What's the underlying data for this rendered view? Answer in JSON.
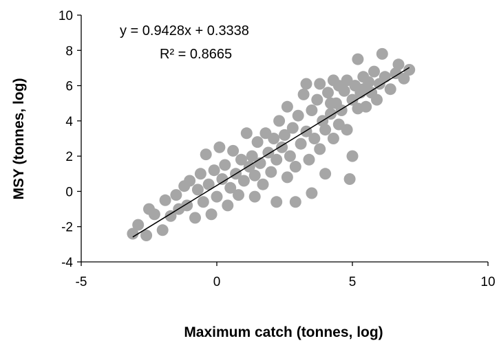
{
  "chart_data": {
    "type": "scatter",
    "title": "",
    "xlabel": "Maximum catch (tonnes, log)",
    "ylabel": "MSY (tonnes, log)",
    "xlim": [
      -5,
      10
    ],
    "ylim": [
      -4,
      10
    ],
    "xticks": [
      -5,
      0,
      5,
      10
    ],
    "yticks": [
      -4,
      -2,
      0,
      2,
      4,
      6,
      8,
      10
    ],
    "grid": false,
    "legend": "none",
    "colors": {
      "points": "#a6a6a6",
      "trendline": "#000000",
      "axes": "#000000"
    },
    "trendline": {
      "slope": 0.9428,
      "intercept": 0.3338,
      "x_range": [
        -3.1,
        7.1
      ],
      "equation_text": "y = 0.9428x  + 0.3338",
      "r2_text": "R² = 0.8665"
    },
    "points": [
      [
        -3.1,
        -2.4
      ],
      [
        -2.9,
        -1.9
      ],
      [
        -2.6,
        -2.5
      ],
      [
        -2.5,
        -1.0
      ],
      [
        -2.3,
        -1.3
      ],
      [
        -2.0,
        -2.2
      ],
      [
        -1.9,
        -0.5
      ],
      [
        -1.7,
        -1.4
      ],
      [
        -1.5,
        -0.2
      ],
      [
        -1.4,
        -1.0
      ],
      [
        -1.2,
        0.3
      ],
      [
        -1.1,
        -0.8
      ],
      [
        -1.0,
        0.6
      ],
      [
        -0.8,
        -1.5
      ],
      [
        -0.7,
        0.1
      ],
      [
        -0.6,
        1.0
      ],
      [
        -0.5,
        -0.6
      ],
      [
        -0.4,
        2.1
      ],
      [
        -0.3,
        0.4
      ],
      [
        -0.2,
        -1.3
      ],
      [
        -0.1,
        1.2
      ],
      [
        0.0,
        -0.3
      ],
      [
        0.1,
        2.5
      ],
      [
        0.2,
        0.7
      ],
      [
        0.3,
        1.5
      ],
      [
        0.4,
        -0.8
      ],
      [
        0.5,
        0.2
      ],
      [
        0.6,
        2.3
      ],
      [
        0.7,
        1.0
      ],
      [
        0.8,
        -0.2
      ],
      [
        0.9,
        1.8
      ],
      [
        1.0,
        0.6
      ],
      [
        1.1,
        3.3
      ],
      [
        1.2,
        1.4
      ],
      [
        1.3,
        2.0
      ],
      [
        1.4,
        -0.3
      ],
      [
        1.4,
        0.9
      ],
      [
        1.5,
        2.8
      ],
      [
        1.6,
        1.6
      ],
      [
        1.7,
        0.4
      ],
      [
        1.8,
        3.3
      ],
      [
        1.9,
        2.2
      ],
      [
        2.0,
        1.1
      ],
      [
        2.1,
        3.0
      ],
      [
        2.2,
        -0.6
      ],
      [
        2.2,
        1.8
      ],
      [
        2.3,
        4.0
      ],
      [
        2.4,
        2.5
      ],
      [
        2.5,
        3.2
      ],
      [
        2.6,
        0.8
      ],
      [
        2.6,
        4.8
      ],
      [
        2.7,
        2.0
      ],
      [
        2.8,
        3.6
      ],
      [
        2.9,
        1.4
      ],
      [
        2.9,
        -0.6
      ],
      [
        3.0,
        4.3
      ],
      [
        3.1,
        2.7
      ],
      [
        3.2,
        5.5
      ],
      [
        3.3,
        3.4
      ],
      [
        3.3,
        6.1
      ],
      [
        3.4,
        1.8
      ],
      [
        3.5,
        4.6
      ],
      [
        3.5,
        -0.1
      ],
      [
        3.6,
        3.0
      ],
      [
        3.7,
        5.2
      ],
      [
        3.8,
        2.4
      ],
      [
        3.8,
        6.1
      ],
      [
        3.9,
        4.0
      ],
      [
        4.0,
        3.5
      ],
      [
        4.0,
        1.0
      ],
      [
        4.1,
        5.6
      ],
      [
        4.2,
        4.4
      ],
      [
        4.3,
        3.0
      ],
      [
        4.3,
        6.3
      ],
      [
        4.4,
        5.0
      ],
      [
        4.5,
        3.8
      ],
      [
        4.5,
        6.0
      ],
      [
        4.6,
        4.6
      ],
      [
        4.7,
        5.7
      ],
      [
        4.8,
        3.5
      ],
      [
        4.8,
        6.3
      ],
      [
        4.9,
        0.7
      ],
      [
        5.0,
        5.2
      ],
      [
        5.0,
        2.0
      ],
      [
        5.1,
        6.0
      ],
      [
        5.2,
        4.7
      ],
      [
        5.2,
        7.5
      ],
      [
        5.3,
        5.6
      ],
      [
        5.4,
        6.5
      ],
      [
        5.5,
        4.8
      ],
      [
        5.6,
        6.2
      ],
      [
        5.7,
        5.6
      ],
      [
        5.8,
        6.8
      ],
      [
        5.9,
        5.2
      ],
      [
        6.0,
        6.1
      ],
      [
        6.1,
        7.8
      ],
      [
        6.2,
        6.5
      ],
      [
        6.4,
        5.8
      ],
      [
        6.6,
        6.7
      ],
      [
        6.7,
        7.2
      ],
      [
        6.9,
        6.4
      ],
      [
        7.1,
        6.9
      ],
      [
        5.4,
        5.8
      ],
      [
        4.2,
        5.0
      ]
    ]
  }
}
